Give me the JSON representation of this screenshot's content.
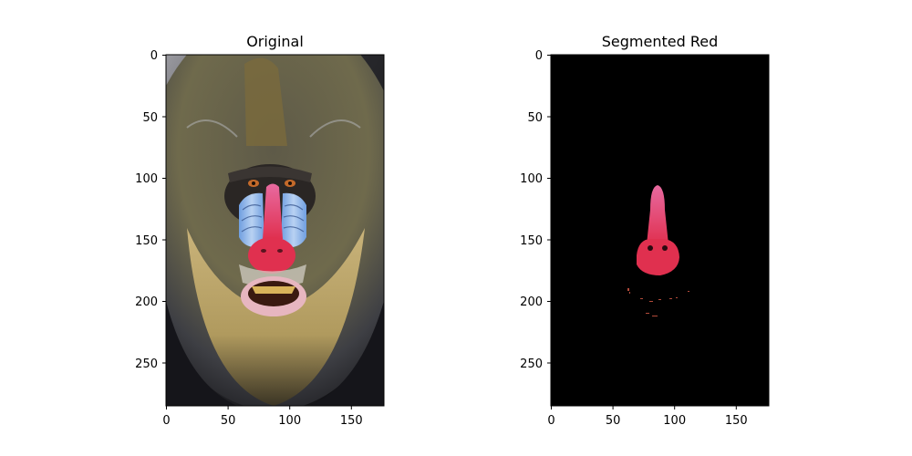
{
  "figure": {
    "panels": [
      {
        "id": "original",
        "title": "Original",
        "image_shape": {
          "width": 177,
          "height": 285
        },
        "x_ticks": [
          0,
          50,
          100,
          150
        ],
        "y_ticks": [
          0,
          50,
          100,
          150,
          200,
          250
        ],
        "content": "mandrill-face-photo"
      },
      {
        "id": "segmented",
        "title": "Segmented Red",
        "image_shape": {
          "width": 177,
          "height": 285
        },
        "x_ticks": [
          0,
          50,
          100,
          150
        ],
        "y_ticks": [
          0,
          50,
          100,
          150,
          200,
          250
        ],
        "content": "red-nose-mask-on-black"
      }
    ]
  },
  "colors": {
    "mask_background": "#000000",
    "nose_red": "#e0304f",
    "nose_pink": "#e86aa0",
    "cheek_blue": "#8ab4e8"
  }
}
